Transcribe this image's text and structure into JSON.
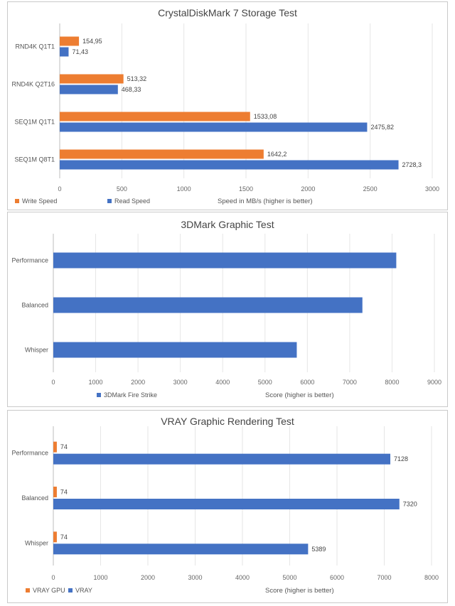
{
  "colors": {
    "series_write": "#ED7D31",
    "series_read": "#4472C4",
    "grid": "#e6e6e6"
  },
  "chart_data": [
    {
      "id": "crystaldiskmark",
      "type": "bar",
      "orientation": "horizontal",
      "title": "CrystalDiskMark 7 Storage Test",
      "categories": [
        "RND4K Q1T1",
        "RND4K Q2T16",
        "SEQ1M Q1T1",
        "SEQ1M Q8T1"
      ],
      "series": [
        {
          "name": "Write Speed",
          "color": "#ED7D31",
          "values": [
            154.95,
            513.32,
            1533.08,
            1642.2
          ],
          "labels": [
            "154,95",
            "513,32",
            "1533,08",
            "1642,2"
          ]
        },
        {
          "name": "Read Speed",
          "color": "#4472C4",
          "values": [
            71.43,
            468.33,
            2475.82,
            2728.3
          ],
          "labels": [
            "71,43",
            "468,33",
            "2475,82",
            "2728,3"
          ]
        }
      ],
      "xlim": [
        0,
        3000
      ],
      "xticks": [
        0,
        500,
        1000,
        1500,
        2000,
        2500,
        3000
      ],
      "xlabel": "Speed in MB/s (higher is better)",
      "grid": true,
      "legend": "bottom-left"
    },
    {
      "id": "3dmark",
      "type": "bar",
      "orientation": "horizontal",
      "title": "3DMark Graphic Test",
      "categories": [
        "Performance",
        "Balanced",
        "Whisper"
      ],
      "series": [
        {
          "name": "3DMark Fire Strike",
          "color": "#4472C4",
          "values": [
            8100,
            7300,
            5750
          ],
          "labels": [
            "",
            "",
            ""
          ]
        }
      ],
      "xlim": [
        0,
        9000
      ],
      "xticks": [
        0,
        1000,
        2000,
        3000,
        4000,
        5000,
        6000,
        7000,
        8000,
        9000
      ],
      "xlabel": "Score (higher is better)",
      "grid": true,
      "legend": "bottom-left"
    },
    {
      "id": "vray",
      "type": "bar",
      "orientation": "horizontal",
      "title": "VRAY Graphic Rendering Test",
      "categories": [
        "Performance",
        "Balanced",
        "Whisper"
      ],
      "series": [
        {
          "name": "VRAY GPU",
          "color": "#ED7D31",
          "values": [
            74,
            74,
            74
          ],
          "labels": [
            "74",
            "74",
            "74"
          ]
        },
        {
          "name": "VRAY",
          "color": "#4472C4",
          "values": [
            7128,
            7320,
            5389
          ],
          "labels": [
            "7128",
            "7320",
            "5389"
          ]
        }
      ],
      "xlim": [
        0,
        8000
      ],
      "xticks": [
        0,
        1000,
        2000,
        3000,
        4000,
        5000,
        6000,
        7000,
        8000
      ],
      "xlabel": "Score (higher is better)",
      "grid": true,
      "legend": "bottom-left"
    }
  ]
}
